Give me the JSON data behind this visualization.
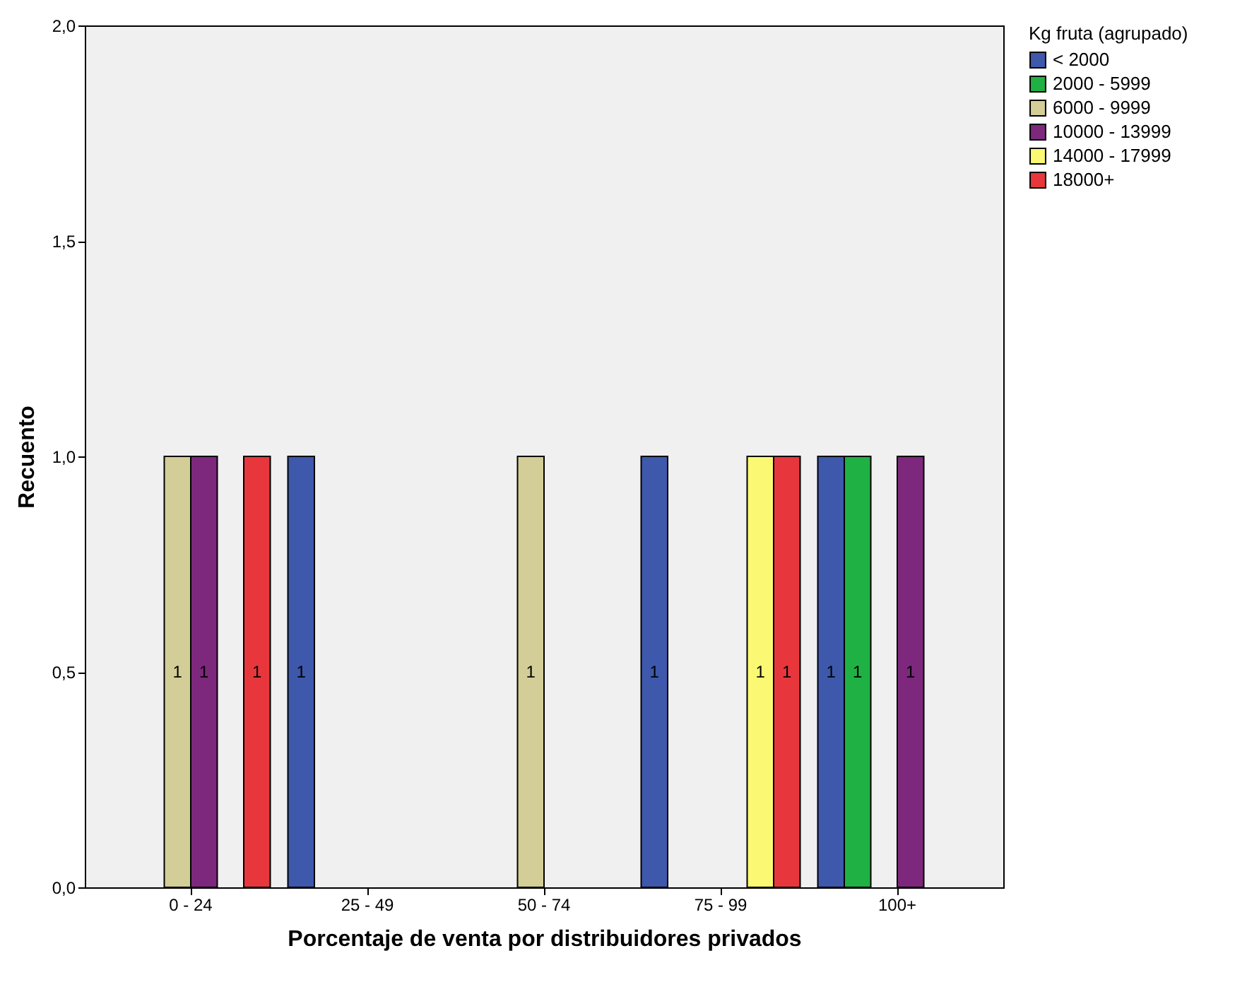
{
  "chart_data": {
    "type": "bar",
    "xlabel": "Porcentaje de venta por distribuidores privados",
    "ylabel": "Recuento",
    "legend_title": "Kg fruta (agrupado)",
    "legend": "top right",
    "data_labels": true,
    "grid": false,
    "categories": [
      "0 - 24",
      "25 - 49",
      "50 - 74",
      "75 - 99",
      "100+"
    ],
    "ylim": [
      0,
      2
    ],
    "yticks": [
      {
        "value": 0,
        "label": "0,0"
      },
      {
        "value": 0.5,
        "label": "0,5"
      },
      {
        "value": 1,
        "label": "1,0"
      },
      {
        "value": 1.5,
        "label": "1,5"
      },
      {
        "value": 2,
        "label": "2,0"
      }
    ],
    "series": [
      {
        "name": "< 2000",
        "color": "#3e58ac",
        "values": [
          null,
          1,
          null,
          1,
          1
        ]
      },
      {
        "name": "2000 - 5999",
        "color": "#1fb144",
        "values": [
          null,
          null,
          null,
          null,
          1
        ]
      },
      {
        "name": "6000 - 9999",
        "color": "#d3ce97",
        "values": [
          1,
          null,
          1,
          null,
          null
        ]
      },
      {
        "name": "10000 - 13999",
        "color": "#7d287d",
        "values": [
          1,
          null,
          null,
          null,
          1
        ]
      },
      {
        "name": "14000 - 17999",
        "color": "#fbf873",
        "values": [
          null,
          null,
          null,
          1,
          null
        ]
      },
      {
        "name": "18000+",
        "color": "#e8373c",
        "values": [
          1,
          null,
          null,
          1,
          null
        ]
      }
    ]
  }
}
